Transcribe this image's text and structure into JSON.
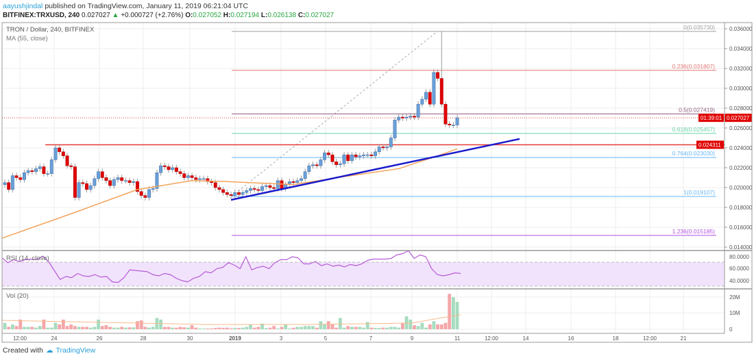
{
  "header": {
    "author": "aayushjindal",
    "published": "published on TradingView.com, January 11, 2019 06:21:04 UTC",
    "symbol": "BITFINEX:TRXUSD, 240",
    "last": "0.027027",
    "change": "+0.000727 (+2.76%)",
    "o_label": "O:",
    "o": "0.027052",
    "h_label": "H:",
    "h": "0.027194",
    "l_label": "L:",
    "l": "0.026138",
    "c_label": "C:",
    "c": "0.027027"
  },
  "legend": {
    "title": "TRON / Dollar, 240, BITFINEX",
    "ma": "MA (55, close)",
    "rsi": "RSI (14, close)",
    "vol": "Vol (20)"
  },
  "footer": {
    "created": "Created with",
    "brand": "TradingView"
  },
  "colors": {
    "up": "#6a9fd8",
    "down": "#e00000",
    "ma": "#f3a35b",
    "trend": "#1a1acc",
    "rsi": "#b65ad6",
    "rsi_band": "#f1e3fc",
    "vol_up": "#a6dcbf",
    "vol_down": "#f4a6a9",
    "support": "#e53935"
  },
  "chart_data": {
    "type": "candlestick",
    "price_axis": {
      "ticks": [
        "0.036000",
        "0.034000",
        "0.032000",
        "0.030000",
        "0.028000",
        "0.026000",
        "0.024000",
        "0.022000",
        "0.020000",
        "0.018000",
        "0.016000",
        "0.014000"
      ],
      "ylim": [
        0.0137,
        0.0366
      ]
    },
    "time_axis": {
      "ticks": [
        "12:00",
        "24",
        "26",
        "28",
        "30",
        "2019",
        "3",
        "5",
        "7",
        "9",
        "11",
        "12:00",
        "14",
        "16",
        "18",
        "12:00",
        "21"
      ]
    },
    "closes": [
      0.0205,
      0.0198,
      0.0212,
      0.021,
      0.0208,
      0.0215,
      0.0217,
      0.0216,
      0.0219,
      0.0221,
      0.0214,
      0.0214,
      0.0228,
      0.024,
      0.0236,
      0.0232,
      0.0222,
      0.0221,
      0.019,
      0.0205,
      0.0204,
      0.0198,
      0.0202,
      0.0209,
      0.0216,
      0.021,
      0.0207,
      0.0202,
      0.0208,
      0.021,
      0.0207,
      0.0207,
      0.0205,
      0.0206,
      0.0196,
      0.0192,
      0.019,
      0.0198,
      0.0199,
      0.0215,
      0.0222,
      0.0221,
      0.0218,
      0.022,
      0.0216,
      0.0214,
      0.021,
      0.0212,
      0.021,
      0.0208,
      0.0209,
      0.0209,
      0.0206,
      0.0205,
      0.02,
      0.0198,
      0.0195,
      0.0193,
      0.0192,
      0.0195,
      0.0193,
      0.0195,
      0.0197,
      0.0199,
      0.0198,
      0.0197,
      0.0201,
      0.0202,
      0.02,
      0.0199,
      0.0207,
      0.0199,
      0.0203,
      0.0206,
      0.0205,
      0.0207,
      0.0209,
      0.0216,
      0.0222,
      0.0223,
      0.0222,
      0.0228,
      0.0235,
      0.0233,
      0.0226,
      0.0223,
      0.0224,
      0.0233,
      0.0227,
      0.0233,
      0.0231,
      0.0232,
      0.0233,
      0.0233,
      0.0232,
      0.0236,
      0.0241,
      0.024,
      0.0241,
      0.025,
      0.0268,
      0.0271,
      0.027,
      0.0271,
      0.0272,
      0.0271,
      0.0284,
      0.0289,
      0.0296,
      0.0284,
      0.0316,
      0.031,
      0.0284,
      0.0264,
      0.0263,
      0.0263,
      0.02703
    ],
    "high_wick": 0.03573,
    "ma_55": [
      [
        0,
        0.0149
      ],
      [
        18,
        0.0175
      ],
      [
        34,
        0.0198
      ],
      [
        48,
        0.0207
      ],
      [
        57,
        0.0206
      ],
      [
        74,
        0.0203
      ],
      [
        87,
        0.0211
      ],
      [
        101,
        0.0219
      ],
      [
        111,
        0.0232
      ],
      [
        116,
        0.0239
      ]
    ],
    "trendline": [
      [
        58,
        0.01876
      ],
      [
        132,
        0.0249
      ]
    ],
    "support_level": {
      "value": 0.024311,
      "label": "0.024311"
    },
    "current_price": {
      "value": 0.027027,
      "label": "0.027027",
      "countdown": "01:39:01"
    },
    "fib_levels": [
      {
        "ratio": "0",
        "value": 0.03573,
        "label": "0(0.035730)",
        "color": "#9e9e9e"
      },
      {
        "ratio": "0.236",
        "value": 0.031807,
        "label": "0.236(0.031807)",
        "color": "#e57373"
      },
      {
        "ratio": "0.5",
        "value": 0.027419,
        "label": "0.5(0.027419)",
        "color": "#8e5a7e"
      },
      {
        "ratio": "0.618",
        "value": 0.025457,
        "label": "0.618(0.025457)",
        "color": "#66d2a8"
      },
      {
        "ratio": "0.764",
        "value": 0.02303,
        "label": "0.764(0.023030)",
        "color": "#64b5f6"
      },
      {
        "ratio": "1",
        "value": 0.019107,
        "label": "1(0.019107)",
        "color": "#64b5f6"
      },
      {
        "ratio": "1.236",
        "value": 0.015185,
        "label": "1.236(0.015185)",
        "color": "#b04fe0"
      }
    ],
    "rsi": {
      "ticks": [
        "80.0000",
        "60.0000",
        "40.0000"
      ],
      "band": [
        30,
        70
      ],
      "values": [
        78,
        70,
        75,
        72,
        75,
        76,
        75,
        81,
        72,
        57,
        42,
        47,
        45,
        52,
        48,
        47,
        50,
        46,
        47,
        38,
        37,
        45,
        58,
        57,
        56,
        55,
        50,
        48,
        52,
        50,
        44,
        40,
        38,
        44,
        47,
        55,
        53,
        60,
        62,
        70,
        66,
        60,
        80,
        58,
        62,
        64,
        60,
        70,
        75,
        75,
        80,
        78,
        68,
        68,
        72,
        65,
        68,
        64,
        66,
        63,
        67,
        65,
        68,
        74,
        76,
        76,
        76,
        77,
        83,
        85,
        90,
        77,
        83,
        80,
        60,
        50,
        48,
        50,
        53,
        52
      ]
    },
    "volume": {
      "ticks": [
        "20M",
        "10M",
        "0"
      ],
      "values_m": [
        4,
        1.5,
        3,
        2,
        6,
        1.5,
        1.5,
        1.5,
        1,
        2,
        6,
        1,
        1,
        4,
        3,
        6,
        2,
        3,
        2,
        1.5,
        1.5,
        1.5,
        1,
        1.5,
        6,
        2,
        2.5,
        1.5,
        1,
        1,
        1.5,
        1,
        1.2,
        1.2,
        5,
        5.5,
        1.5,
        1,
        1.5,
        7,
        6,
        1.5,
        1.5,
        1,
        1,
        1.5,
        1.2,
        1,
        2.5,
        1,
        0.5,
        0.5,
        0.5,
        0.5,
        0.8,
        1,
        0.8,
        1,
        0.6,
        0.8,
        0.8,
        1,
        1.5,
        3,
        1,
        1.5,
        3.5,
        0.7,
        1,
        2,
        0.5,
        1.5,
        3,
        0.5,
        1,
        1.5,
        1.5,
        2,
        2,
        2,
        1,
        5,
        3,
        5,
        3,
        1,
        7,
        1,
        2,
        1.5,
        1.5,
        1.5,
        1,
        4.5,
        1,
        0.8,
        0.8,
        1,
        1,
        1.5,
        1.5,
        1,
        4,
        8,
        6,
        2.5,
        2,
        4,
        1,
        3,
        5,
        3,
        3,
        4,
        22,
        20,
        17,
        22,
        8,
        5,
        1
      ]
    }
  }
}
